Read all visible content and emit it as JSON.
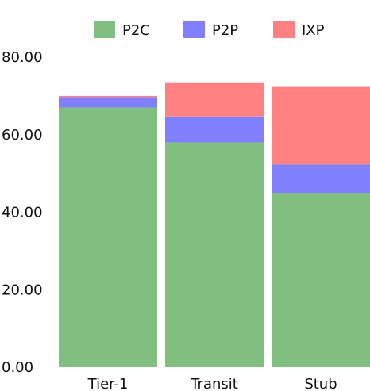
{
  "chart_data": {
    "type": "bar",
    "stacked": true,
    "categories": [
      "Tier-1",
      "Transit",
      "Stub"
    ],
    "series": [
      {
        "name": "P2C",
        "color": "#80bf80",
        "values": [
          67.0,
          58.0,
          45.0
        ]
      },
      {
        "name": "P2P",
        "color": "#8080ff",
        "values": [
          2.7,
          6.7,
          7.3
        ]
      },
      {
        "name": "IXP",
        "color": "#ff8080",
        "values": [
          0.3,
          8.6,
          20.0
        ]
      }
    ],
    "y_ticks": [
      "0.00",
      "20.00",
      "40.00",
      "60.00",
      "80.00"
    ],
    "ylim": [
      0,
      80
    ],
    "grid": false,
    "legend_position": "top"
  }
}
